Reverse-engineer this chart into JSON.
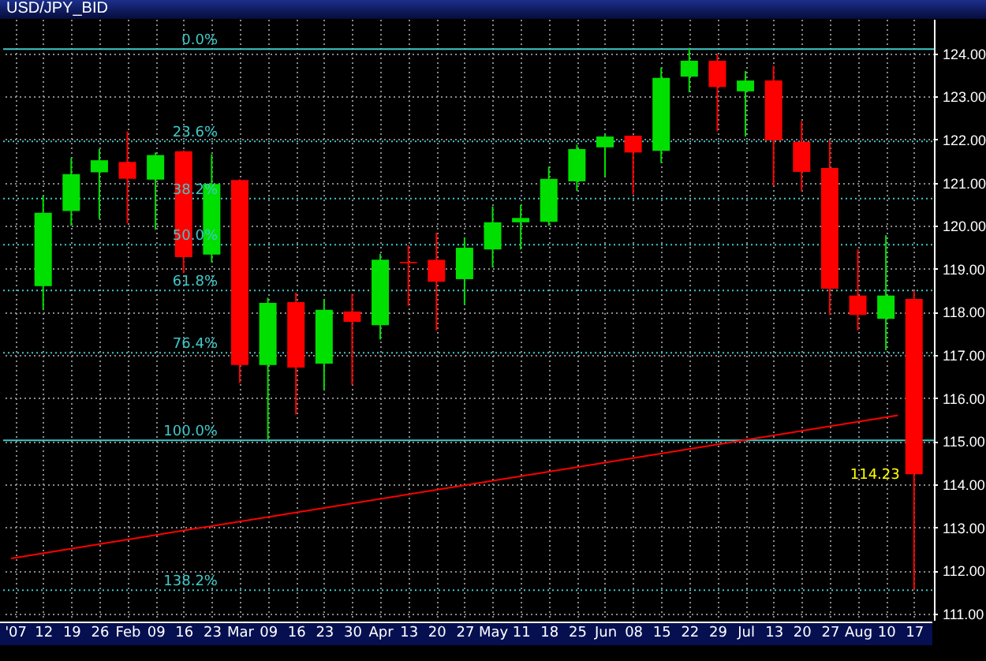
{
  "chart_data": {
    "type": "candlestick",
    "title": "USD/JPY_BID",
    "x": [
      "2007-01-12",
      "2007-01-19",
      "2007-01-26",
      "2007-02-02",
      "2007-02-09",
      "2007-02-16",
      "2007-02-23",
      "2007-03-02",
      "2007-03-09",
      "2007-03-16",
      "2007-03-23",
      "2007-03-30",
      "2007-04-06",
      "2007-04-13",
      "2007-04-20",
      "2007-04-27",
      "2007-05-04",
      "2007-05-11",
      "2007-05-18",
      "2007-05-25",
      "2007-06-01",
      "2007-06-08",
      "2007-06-15",
      "2007-06-22",
      "2007-06-29",
      "2007-07-06",
      "2007-07-13",
      "2007-07-20",
      "2007-07-27",
      "2007-08-03",
      "2007-08-10",
      "2007-08-17"
    ],
    "ohlc": [
      [
        118.6,
        120.7,
        118.05,
        120.3
      ],
      [
        120.34,
        121.58,
        120.0,
        121.2
      ],
      [
        121.24,
        121.78,
        120.16,
        121.52
      ],
      [
        121.48,
        122.19,
        120.06,
        121.09
      ],
      [
        121.07,
        121.7,
        119.91,
        121.64
      ],
      [
        121.73,
        121.75,
        118.9,
        119.27
      ],
      [
        119.33,
        121.66,
        119.15,
        120.97
      ],
      [
        121.06,
        121.08,
        116.35,
        116.77
      ],
      [
        116.77,
        118.33,
        115.03,
        118.21
      ],
      [
        118.23,
        118.45,
        115.62,
        116.71
      ],
      [
        116.8,
        118.3,
        116.19,
        118.05
      ],
      [
        118.01,
        118.42,
        116.31,
        117.77
      ],
      [
        117.69,
        119.35,
        117.36,
        119.21
      ],
      [
        119.16,
        119.55,
        118.14,
        119.13
      ],
      [
        119.21,
        119.84,
        117.57,
        118.7
      ],
      [
        118.76,
        119.73,
        118.17,
        119.49
      ],
      [
        119.45,
        120.45,
        119.03,
        120.08
      ],
      [
        120.08,
        120.49,
        119.45,
        120.18
      ],
      [
        120.09,
        121.37,
        120.0,
        121.09
      ],
      [
        121.03,
        121.88,
        120.81,
        121.78
      ],
      [
        121.82,
        122.13,
        121.13,
        122.07
      ],
      [
        122.09,
        122.1,
        120.73,
        121.7
      ],
      [
        121.74,
        123.67,
        121.46,
        123.43
      ],
      [
        123.46,
        124.13,
        123.1,
        123.83
      ],
      [
        123.83,
        123.98,
        122.19,
        123.22
      ],
      [
        123.12,
        123.59,
        122.07,
        123.37
      ],
      [
        123.37,
        123.71,
        120.93,
        121.98
      ],
      [
        121.95,
        122.43,
        120.81,
        121.25
      ],
      [
        121.34,
        121.98,
        117.93,
        118.54
      ],
      [
        118.38,
        119.45,
        117.57,
        117.93
      ],
      [
        117.84,
        119.78,
        117.11,
        118.38
      ],
      [
        118.3,
        118.5,
        111.54,
        114.23
      ]
    ],
    "colors": [
      "#00e000",
      "#00e000",
      "#00e000",
      "#ff0000",
      "#00e000",
      "#ff0000",
      "#00e000",
      "#ff0000",
      "#00e000",
      "#ff0000",
      "#00e000",
      "#ff0000",
      "#00e000",
      "#ff0000",
      "#ff0000",
      "#00e000",
      "#00e000",
      "#00e000",
      "#00e000",
      "#00e000",
      "#00e000",
      "#ff0000",
      "#00e000",
      "#00e000",
      "#ff0000",
      "#00e000",
      "#ff0000",
      "#ff0000",
      "#ff0000",
      "#ff0000",
      "#00e000",
      "#ff0000"
    ],
    "series": [
      {
        "type": "line",
        "x": [
          "2007-01-04",
          "2007-08-13"
        ],
        "values": [
          112.28,
          115.6
        ],
        "color": "#ff0000"
      }
    ],
    "xlim": [
      "2007-01-04",
      "2007-08-20"
    ],
    "xticks": [
      {
        "value": "2007-01-05",
        "label": "'07"
      },
      {
        "value": "2007-01-12",
        "label": "12"
      },
      {
        "value": "2007-01-19",
        "label": "19"
      },
      {
        "value": "2007-01-26",
        "label": "26"
      },
      {
        "value": "2007-02-02",
        "label": "Feb"
      },
      {
        "value": "2007-02-09",
        "label": "09"
      },
      {
        "value": "2007-02-16",
        "label": "16"
      },
      {
        "value": "2007-02-23",
        "label": "23"
      },
      {
        "value": "2007-03-02",
        "label": "Mar"
      },
      {
        "value": "2007-03-09",
        "label": "09"
      },
      {
        "value": "2007-03-16",
        "label": "16"
      },
      {
        "value": "2007-03-23",
        "label": "23"
      },
      {
        "value": "2007-03-30",
        "label": "30"
      },
      {
        "value": "2007-04-06",
        "label": "Apr"
      },
      {
        "value": "2007-04-13",
        "label": "13"
      },
      {
        "value": "2007-04-20",
        "label": "20"
      },
      {
        "value": "2007-04-27",
        "label": "27"
      },
      {
        "value": "2007-05-04",
        "label": "May"
      },
      {
        "value": "2007-05-11",
        "label": "11"
      },
      {
        "value": "2007-05-18",
        "label": "18"
      },
      {
        "value": "2007-05-25",
        "label": "25"
      },
      {
        "value": "2007-06-01",
        "label": "Jun"
      },
      {
        "value": "2007-06-08",
        "label": "08"
      },
      {
        "value": "2007-06-15",
        "label": "15"
      },
      {
        "value": "2007-06-22",
        "label": "22"
      },
      {
        "value": "2007-06-29",
        "label": "29"
      },
      {
        "value": "2007-07-06",
        "label": "Jul"
      },
      {
        "value": "2007-07-13",
        "label": "13"
      },
      {
        "value": "2007-07-20",
        "label": "20"
      },
      {
        "value": "2007-07-27",
        "label": "27"
      },
      {
        "value": "2007-08-03",
        "label": "Aug"
      },
      {
        "value": "2007-08-10",
        "label": "10"
      },
      {
        "value": "2007-08-17",
        "label": "17"
      }
    ],
    "ylim": [
      110.85,
      124.8
    ],
    "yticks": [
      {
        "value": 111,
        "label": "111.00"
      },
      {
        "value": 112,
        "label": "112.00"
      },
      {
        "value": 113,
        "label": "113.00"
      },
      {
        "value": 114,
        "label": "114.00"
      },
      {
        "value": 115,
        "label": "115.00"
      },
      {
        "value": 116,
        "label": "116.00"
      },
      {
        "value": 117,
        "label": "117.00"
      },
      {
        "value": 118,
        "label": "118.00"
      },
      {
        "value": 119,
        "label": "119.00"
      },
      {
        "value": 120,
        "label": "120.00"
      },
      {
        "value": 121,
        "label": "121.00"
      },
      {
        "value": 122,
        "label": "122.00"
      },
      {
        "value": 123,
        "label": "123.00"
      },
      {
        "value": 124,
        "label": "124.00"
      }
    ],
    "ref_lines": [
      {
        "axis": "y",
        "value": 124.1,
        "color": "#40c8c8",
        "line_style": "solid"
      },
      {
        "axis": "y",
        "value": 121.96,
        "color": "#40c8c8",
        "line_style": "dotted"
      },
      {
        "axis": "y",
        "value": 120.63,
        "color": "#40c8c8",
        "line_style": "dotted"
      },
      {
        "axis": "y",
        "value": 119.56,
        "color": "#40c8c8",
        "line_style": "dotted"
      },
      {
        "axis": "y",
        "value": 118.5,
        "color": "#40c8c8",
        "line_style": "dotted"
      },
      {
        "axis": "y",
        "value": 117.05,
        "color": "#40c8c8",
        "line_style": "dotted"
      },
      {
        "axis": "y",
        "value": 115.02,
        "color": "#40c8c8",
        "line_style": "solid"
      },
      {
        "axis": "y",
        "value": 111.54,
        "color": "#40c8c8",
        "line_style": "dotted"
      }
    ],
    "annotations": [
      {
        "text": "0.0%",
        "y": 124.1
      },
      {
        "text": "23.6%",
        "y": 121.96
      },
      {
        "text": "38.2%",
        "y": 120.63
      },
      {
        "text": "50.0%",
        "y": 119.56
      },
      {
        "text": "61.8%",
        "y": 118.5
      },
      {
        "text": "76.4%",
        "y": 117.05
      },
      {
        "text": "100.0%",
        "y": 115.02
      },
      {
        "text": "138.2%",
        "y": 111.54
      },
      {
        "text": "114.23",
        "x": "2007-08-17",
        "y": 114.23
      }
    ],
    "grid": true
  }
}
